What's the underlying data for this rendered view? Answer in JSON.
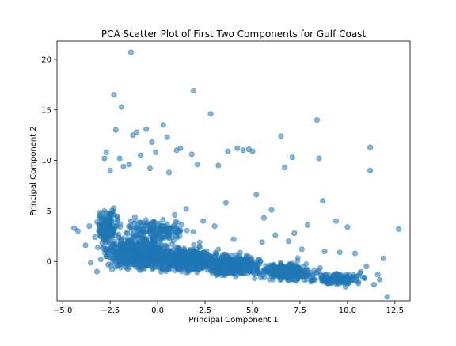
{
  "chart_data": {
    "type": "scatter",
    "title": "PCA Scatter Plot of First Two Components for Gulf Coast",
    "xlabel": "Principal Component 1",
    "ylabel": "Principal Component 2",
    "xlim": [
      -5.3,
      13.3
    ],
    "ylim": [
      -3.9,
      21.8
    ],
    "xticks": [
      -5.0,
      -2.5,
      0.0,
      2.5,
      5.0,
      7.5,
      10.0,
      12.5
    ],
    "xtick_labels": [
      "−5.0",
      "−2.5",
      "0.0",
      "2.5",
      "5.0",
      "7.5",
      "10.0",
      "12.5"
    ],
    "yticks": [
      0,
      5,
      10,
      15,
      20
    ],
    "ytick_labels": [
      "0",
      "5",
      "10",
      "15",
      "20"
    ],
    "grid": false,
    "legend": false,
    "marker_color": "#1f77b4",
    "marker_alpha": 0.55,
    "series": [
      {
        "name": "",
        "x": [
          -1.4,
          1.9,
          -2.3,
          -1.9,
          -2.8,
          -2.2,
          -1.3,
          -1.1,
          -0.6,
          -0.3,
          0.5,
          1.2,
          2.8,
          0.3,
          -0.9,
          -0.1,
          1.0,
          1.8,
          -1.8,
          -2.5,
          -2.7,
          -2.0,
          -1.5,
          -0.4,
          0.6,
          2.1,
          3.2,
          3.7,
          4.2,
          4.5,
          5.0,
          4.8,
          6.5,
          7.1,
          6.7,
          8.4,
          8.5,
          11.2,
          11.2,
          12.7,
          10.0,
          9.4,
          8.7,
          6.0,
          5.2,
          5.6,
          7.2,
          7.9,
          3.6,
          -4.4,
          -4.2,
          -3.8,
          -3.6,
          -3.3,
          -2.9,
          -1.6,
          -1.2,
          -0.2,
          0.9,
          1.5,
          2.4,
          3.0,
          4.0,
          5.5,
          6.2,
          6.9,
          7.6,
          8.8,
          9.6,
          10.4,
          11.0,
          11.6,
          11.9,
          12.1,
          11.4,
          11.7,
          10.9,
          9.9,
          9.0,
          8.1,
          7.3,
          6.4,
          5.7,
          -3.0,
          -2.6,
          -2.1,
          -1.0,
          0.0,
          1.4,
          2.2,
          3.3,
          4.6,
          -3.2,
          -2.4,
          -0.7,
          0.8,
          2.6,
          5.3,
          8.9
        ],
        "y": [
          20.7,
          16.9,
          16.5,
          15.3,
          10.2,
          13.0,
          12.5,
          12.8,
          13.1,
          11.8,
          12.3,
          11.2,
          14.6,
          13.5,
          10.5,
          10.8,
          11.0,
          10.6,
          9.4,
          9.0,
          10.8,
          10.2,
          9.6,
          9.2,
          8.8,
          9.6,
          9.5,
          10.9,
          11.2,
          11.0,
          10.9,
          11.1,
          12.4,
          10.3,
          9.3,
          14.0,
          10.2,
          11.3,
          9.0,
          3.2,
          3.4,
          4.0,
          6.0,
          5.1,
          6.6,
          4.3,
          2.8,
          3.6,
          5.8,
          3.3,
          3.0,
          1.6,
          3.5,
          2.4,
          1.3,
          2.8,
          4.4,
          3.9,
          4.6,
          5.2,
          4.0,
          3.5,
          2.2,
          1.9,
          2.6,
          2.0,
          1.2,
          1.0,
          0.9,
          0.8,
          -0.5,
          -1.3,
          0.3,
          -3.5,
          -2.3,
          -1.8,
          -1.6,
          -2.5,
          -2.2,
          -2.0,
          -1.9,
          -1.4,
          -1.1,
          0.2,
          -0.3,
          0.5,
          0.7,
          0.4,
          0.1,
          -0.2,
          -0.6,
          -0.9,
          -1.0,
          -0.8,
          -0.7,
          -0.4,
          -0.5,
          -1.2,
          -1.9
        ]
      }
    ],
    "dense_clouds": [
      {
        "cx": -1.0,
        "cy": 0.8,
        "sx": 1.6,
        "sy": 1.3,
        "n": 700
      },
      {
        "cx": 1.5,
        "cy": 0.2,
        "sx": 1.7,
        "sy": 1.0,
        "n": 650
      },
      {
        "cx": 4.0,
        "cy": -0.4,
        "sx": 1.5,
        "sy": 0.9,
        "n": 420
      },
      {
        "cx": 6.8,
        "cy": -1.0,
        "sx": 1.4,
        "sy": 0.8,
        "n": 260
      },
      {
        "cx": 9.4,
        "cy": -1.7,
        "sx": 1.2,
        "sy": 0.6,
        "n": 140
      },
      {
        "cx": -2.6,
        "cy": 3.5,
        "sx": 0.5,
        "sy": 1.7,
        "n": 180
      },
      {
        "cx": 0.0,
        "cy": 3.0,
        "sx": 1.5,
        "sy": 1.1,
        "n": 160
      }
    ]
  }
}
